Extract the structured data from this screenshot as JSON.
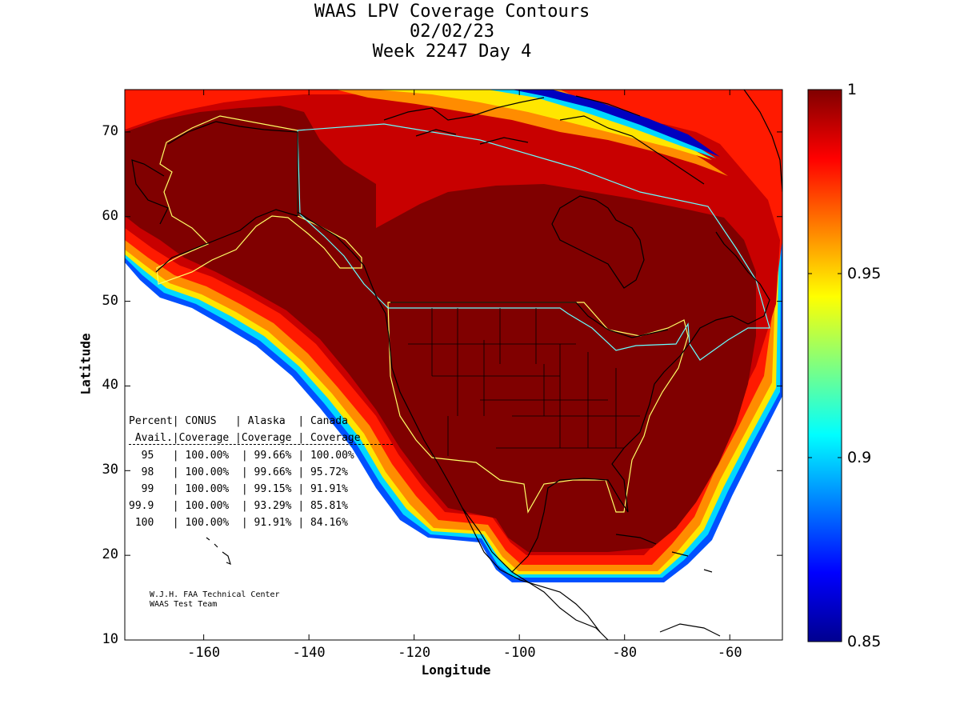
{
  "title": {
    "line1": "WAAS LPV Coverage Contours",
    "line2": "02/02/23",
    "line3": "Week 2247 Day 4"
  },
  "axes": {
    "xlabel": "Longitude",
    "ylabel": "Latitude",
    "xlim": [
      -175,
      -50
    ],
    "ylim": [
      10,
      75
    ],
    "xticks": [
      "-160",
      "-140",
      "-120",
      "-100",
      "-80",
      "-60"
    ],
    "xtick_values": [
      -160,
      -140,
      -120,
      -100,
      -80,
      -60
    ],
    "yticks": [
      "10",
      "20",
      "30",
      "40",
      "50",
      "60",
      "70"
    ],
    "ytick_values": [
      10,
      20,
      30,
      40,
      50,
      60,
      70
    ]
  },
  "colorbar": {
    "colormap": "jet",
    "min": 0.85,
    "max": 1,
    "labels": [
      "1",
      "0.95",
      "0.9",
      "0.85"
    ],
    "label_values": [
      1,
      0.95,
      0.9,
      0.85
    ]
  },
  "stats_table": {
    "header1": "Percent| CONUS   | Alaska  | Canada",
    "header2": " Avail.|Coverage |Coverage | Coverage",
    "rows": [
      "  95   | 100.00%  | 99.66% | 100.00%",
      "  98   | 100.00%  | 99.66% | 95.72%",
      "  99   | 100.00%  | 99.15% | 91.91%",
      "99.9   | 100.00%  | 93.29% | 85.81%",
      " 100   | 100.00%  | 91.91% | 84.16%"
    ]
  },
  "credit": {
    "line1": "W.J.H. FAA Technical Center",
    "line2": "WAAS Test Team"
  },
  "colors": {
    "deep": "#800000",
    "red": "#c80000",
    "bright_red": "#ff1a00",
    "orange": "#ff8c00",
    "yellow": "#ffe600",
    "cyan": "#00d8ff",
    "blue": "#0050ff",
    "navy": "#00008f",
    "region_outline": "#ffff66",
    "canada_outline": "#66ffff"
  }
}
